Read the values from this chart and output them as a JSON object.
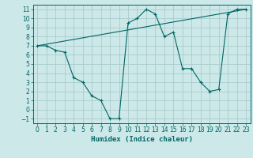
{
  "title": "",
  "xlabel": "Humidex (Indice chaleur)",
  "ylabel": "",
  "background_color": "#cce8e8",
  "grid_color": "#aacccc",
  "line_color": "#006666",
  "xlim": [
    -0.5,
    23.5
  ],
  "ylim": [
    -1.5,
    11.5
  ],
  "xticks": [
    0,
    1,
    2,
    3,
    4,
    5,
    6,
    7,
    8,
    9,
    10,
    11,
    12,
    13,
    14,
    15,
    16,
    17,
    18,
    19,
    20,
    21,
    22,
    23
  ],
  "yticks": [
    -1,
    0,
    1,
    2,
    3,
    4,
    5,
    6,
    7,
    8,
    9,
    10,
    11
  ],
  "line1_x": [
    0,
    1,
    2,
    3,
    4,
    5,
    6,
    7,
    8,
    9,
    10,
    11,
    12,
    13,
    14,
    15,
    16,
    17,
    18,
    19,
    20,
    21,
    22,
    23
  ],
  "line1_y": [
    7.0,
    7.0,
    6.5,
    6.3,
    3.5,
    3.0,
    1.5,
    1.0,
    -1.0,
    -1.0,
    9.5,
    10.0,
    11.0,
    10.5,
    8.0,
    8.5,
    4.5,
    4.5,
    3.0,
    2.0,
    2.2,
    10.5,
    11.0,
    11.0
  ],
  "line2_x": [
    0,
    23
  ],
  "line2_y": [
    7.0,
    11.0
  ],
  "marker_size": 3.0,
  "font_size": 6.5,
  "tick_font_size": 5.5
}
